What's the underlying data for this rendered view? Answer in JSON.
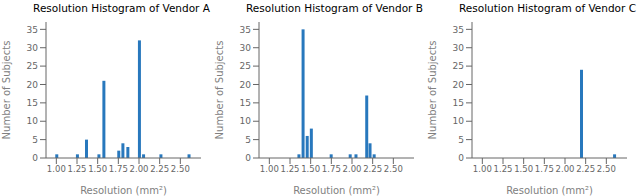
{
  "chart_data": [
    {
      "type": "bar",
      "title": "Resolution Histogram of Vendor A",
      "xlabel": "Resolution (mm²)",
      "ylabel": "Number of Subjects",
      "x": [
        1.0,
        1.25,
        1.36,
        1.51,
        1.57,
        1.75,
        1.8,
        1.86,
        2.0,
        2.05,
        2.26,
        2.6
      ],
      "values": [
        1,
        1,
        5,
        1,
        21,
        2,
        4,
        3,
        32,
        1,
        1,
        1
      ],
      "color": "#2878bd",
      "xlim": [
        0.875,
        2.75
      ],
      "xticks": [
        {
          "value": 1.0,
          "label": "1.00"
        },
        1.25,
        {
          "value": 1.5,
          "label": "1.50"
        },
        1.75,
        {
          "value": 2.0,
          "label": "2.00"
        },
        2.25,
        {
          "value": 2.5,
          "label": "2.50"
        }
      ],
      "ylim": [
        0,
        37
      ],
      "yticks": [
        0,
        5,
        10,
        15,
        20,
        25,
        30,
        35
      ]
    },
    {
      "type": "bar",
      "title": "Resolution Histogram of Vendor B",
      "xlabel": "Resolution (mm²)",
      "ylabel": "Number of Subjects",
      "x": [
        1.36,
        1.41,
        1.46,
        1.51,
        1.75,
        1.98,
        2.05,
        2.18,
        2.22,
        2.27
      ],
      "values": [
        1,
        35,
        6,
        8,
        1,
        1,
        1,
        17,
        4,
        1
      ],
      "color": "#2878bd",
      "xlim": [
        0.875,
        2.75
      ],
      "xticks": [
        {
          "value": 1.0,
          "label": "1.00"
        },
        1.25,
        {
          "value": 1.5,
          "label": "1.50"
        },
        1.75,
        {
          "value": 2.0,
          "label": "2.00"
        },
        2.25,
        {
          "value": 2.5,
          "label": "2.50"
        }
      ],
      "ylim": [
        0,
        37
      ],
      "yticks": [
        0,
        5,
        10,
        15,
        20,
        25,
        30,
        35
      ]
    },
    {
      "type": "bar",
      "title": "Resolution Histogram of Vendor C",
      "xlabel": "Resolution (mm²)",
      "ylabel": "Number of Subjects",
      "x": [
        2.2,
        2.6
      ],
      "values": [
        24,
        1
      ],
      "color": "#2878bd",
      "xlim": [
        0.875,
        2.75
      ],
      "xticks": [
        {
          "value": 1.0,
          "label": "1.00"
        },
        1.25,
        {
          "value": 1.5,
          "label": "1.50"
        },
        1.75,
        {
          "value": 2.0,
          "label": "2.00"
        },
        2.25,
        {
          "value": 2.5,
          "label": "2.50"
        }
      ],
      "ylim": [
        0,
        37
      ],
      "yticks": [
        0,
        5,
        10,
        15,
        20,
        25,
        30,
        35
      ]
    }
  ]
}
